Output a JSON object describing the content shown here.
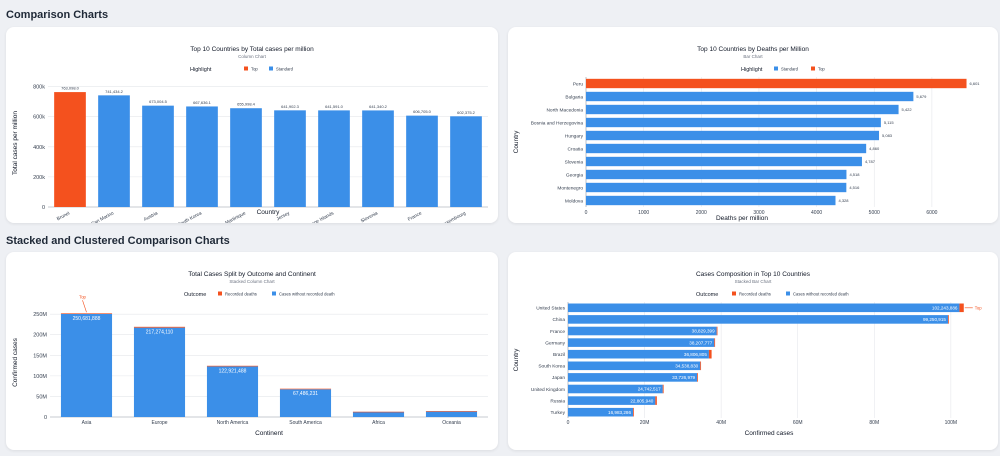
{
  "sections": {
    "comparison": "Comparison Charts",
    "stacked": "Stacked and Clustered Comparison Charts"
  },
  "colors": {
    "top": "#f4511e",
    "standard": "#3b8fe8",
    "deaths": "#f4511e",
    "grid": "#e5e7eb",
    "axis": "#9ca3af"
  },
  "chart_data": [
    {
      "type": "bar",
      "title": "Top 10 Countries by Total cases per million",
      "subtitle": "Column Chart",
      "legend_title": "Highlight",
      "legend": [
        "Top",
        "Standard"
      ],
      "xlabel": "Country",
      "ylabel": "Total cases per million",
      "ylim": [
        0,
        850000
      ],
      "yticks": [
        0,
        200000,
        400000,
        600000,
        800000
      ],
      "ytick_labels": [
        "0",
        "200k",
        "400k",
        "600k",
        "800k"
      ],
      "categories": [
        "Brunei",
        "San Marino",
        "Austria",
        "South Korea",
        "Martinique",
        "Jersey",
        "Faroe Islands",
        "Slovenia",
        "France",
        "Luxembourg"
      ],
      "values": [
        763098,
        741434,
        673004,
        667636,
        655998,
        641902,
        641591,
        641340,
        606705,
        602375
      ],
      "labels": [
        "763,098.0",
        "741,434.2",
        "673,004.5",
        "667,636.1",
        "655,998.4",
        "641,902.3",
        "641,591.0",
        "641,340.2",
        "606,705.0",
        "602,375.2"
      ],
      "highlight": [
        "Top",
        "Standard",
        "Standard",
        "Standard",
        "Standard",
        "Standard",
        "Standard",
        "Standard",
        "Standard",
        "Standard"
      ]
    },
    {
      "type": "bar",
      "orientation": "horizontal",
      "title": "Top 10 Countries by Deaths per Million",
      "subtitle": "Bar Chart",
      "legend_title": "Highlight",
      "legend": [
        "Standard",
        "Top"
      ],
      "xlabel": "Deaths per million",
      "ylabel": "Country",
      "xlim": [
        0,
        6800
      ],
      "xticks": [
        0,
        1000,
        2000,
        3000,
        4000,
        5000,
        6000
      ],
      "categories": [
        "Peru",
        "Bulgaria",
        "North Macedonia",
        "Bosnia and Herzegovina",
        "Hungary",
        "Croatia",
        "Slovenia",
        "Georgia",
        "Montenegro",
        "Moldova"
      ],
      "values": [
        6601,
        5679,
        5422,
        5115,
        5083,
        4860,
        4787,
        4518,
        4516,
        4328
      ],
      "labels": [
        "6,601",
        "5,679",
        "5,422",
        "5,115",
        "5,083",
        "4,860",
        "4,787",
        "4,518",
        "4,516",
        "4,328"
      ],
      "highlight": [
        "Top",
        "Standard",
        "Standard",
        "Standard",
        "Standard",
        "Standard",
        "Standard",
        "Standard",
        "Standard",
        "Standard"
      ]
    },
    {
      "type": "bar",
      "stacked": true,
      "title": "Total Cases Split by Outcome and Continent",
      "subtitle": "Stacked Column Chart",
      "legend_title": "Outcome",
      "xlabel": "Continent",
      "ylabel": "Confirmed cases",
      "ylim": [
        0,
        265000000
      ],
      "yticks": [
        0,
        50000000,
        100000000,
        150000000,
        200000000,
        250000000
      ],
      "ytick_labels": [
        "0",
        "50M",
        "100M",
        "150M",
        "200M",
        "250M"
      ],
      "categories": [
        "Asia",
        "Europe",
        "North America",
        "South America",
        "Africa",
        "Oceania"
      ],
      "series": [
        {
          "name": "Recorded deaths",
          "values": [
            1500000,
            2000000,
            1600000,
            1350000,
            250000,
            30000
          ]
        },
        {
          "name": "Cases without recorded death",
          "values": [
            250681888,
            217274110,
            122921488,
            67486231,
            12500000,
            14000000
          ]
        }
      ],
      "labels": [
        "250,681,888",
        "217,274,110",
        "122,921,488",
        "67,486,231",
        "",
        ""
      ],
      "annotation": {
        "text": "Top",
        "category": "Asia"
      }
    },
    {
      "type": "bar",
      "orientation": "horizontal",
      "stacked": true,
      "title": "Cases Composition in Top 10 Countries",
      "subtitle": "Stacked Bar Chart",
      "legend_title": "Outcome",
      "xlabel": "Confirmed cases",
      "ylabel": "Country",
      "xlim": [
        0,
        105000000
      ],
      "xticks": [
        0,
        20000000,
        40000000,
        60000000,
        80000000,
        100000000
      ],
      "xtick_labels": [
        "0",
        "20M",
        "40M",
        "60M",
        "80M",
        "100M"
      ],
      "categories": [
        "United States",
        "China",
        "France",
        "Germany",
        "Brazil",
        "South Korea",
        "Japan",
        "United Kingdom",
        "Russia",
        "Turkey"
      ],
      "series": [
        {
          "name": "Recorded deaths",
          "values": [
            1130000,
            120000,
            167000,
            174000,
            700000,
            35000,
            74000,
            230000,
            400000,
            101000
          ]
        },
        {
          "name": "Cases without recorded death",
          "values": [
            102243886,
            99250915,
            38829399,
            38207777,
            36806805,
            34538830,
            33726979,
            24742517,
            22805940,
            16983286
          ]
        }
      ],
      "labels": [
        "102,243,886",
        "99,250,915",
        "38,829,399",
        "38,207,777",
        "36,806,805",
        "34,538,830",
        "33,726,979",
        "24,742,517",
        "22,805,940",
        "16,983,286"
      ],
      "annotation": {
        "text": "Top",
        "category": "United States"
      }
    }
  ]
}
